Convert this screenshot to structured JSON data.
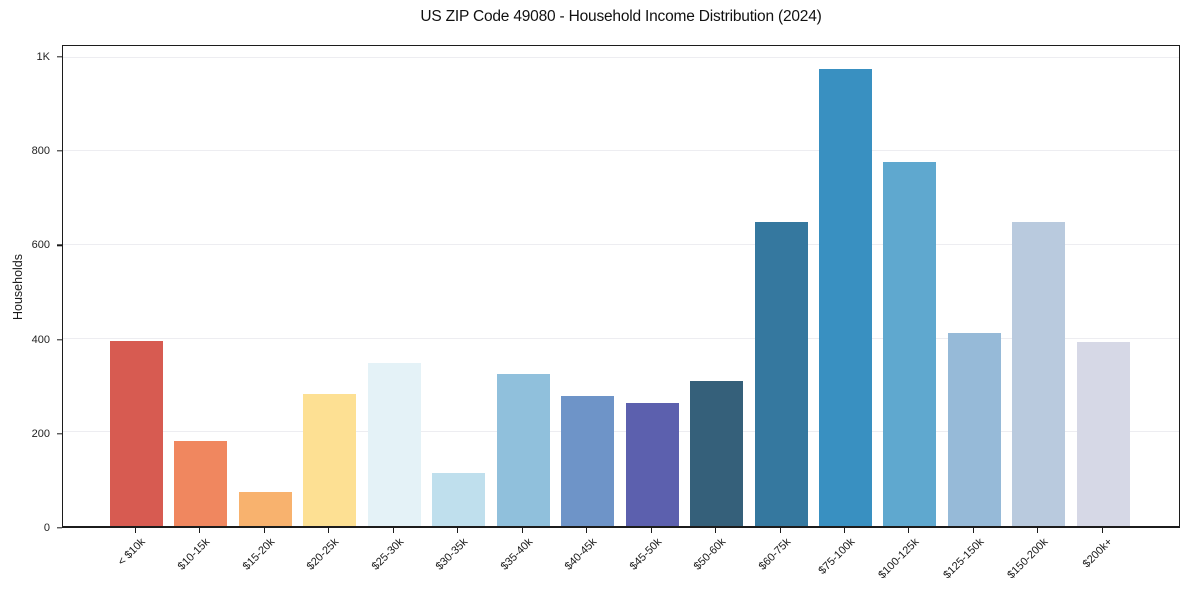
{
  "chart_data": {
    "type": "bar",
    "title": "US ZIP Code 49080 - Household Income Distribution (2024)",
    "xlabel": "",
    "ylabel": "Households",
    "categories": [
      "< $10k",
      "$10-15k",
      "$15-20k",
      "$20-25k",
      "$25-30k",
      "$30-35k",
      "$35-40k",
      "$40-45k",
      "$45-50k",
      "$50-60k",
      "$60-75k",
      "$75-100k",
      "$100-125k",
      "$125-150k",
      "$150-200k",
      "$200k+"
    ],
    "values": [
      395,
      181,
      72,
      281,
      348,
      113,
      324,
      277,
      262,
      309,
      650,
      976,
      778,
      413,
      650,
      392
    ],
    "bar_colors": [
      "#d75b51",
      "#f0875f",
      "#f8b26e",
      "#fde093",
      "#e4f2f7",
      "#bfdfed",
      "#90c0dc",
      "#6e94c8",
      "#5c60ae",
      "#35607a",
      "#35789f",
      "#3990c1",
      "#5fa8cf",
      "#96bad8",
      "#b9cade",
      "#d6d8e6"
    ],
    "ylim": [
      0,
      1025
    ],
    "yticks": [
      {
        "value": 0,
        "label": "0"
      },
      {
        "value": 200,
        "label": "200"
      },
      {
        "value": 400,
        "label": "400"
      },
      {
        "value": 600,
        "label": "600"
      },
      {
        "value": 800,
        "label": "800"
      },
      {
        "value": 1000,
        "label": "1K"
      }
    ],
    "grid": true,
    "legend_position": "none",
    "axis_color": "#1a1a1a",
    "grid_color": "#ededf1"
  }
}
